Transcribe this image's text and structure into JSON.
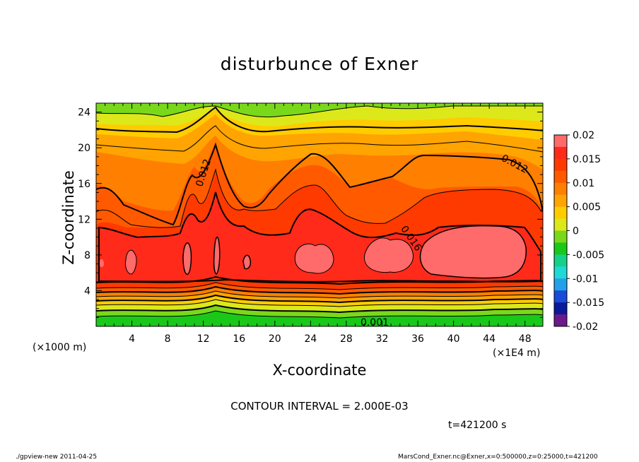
{
  "chart_data": {
    "type": "heatmap",
    "title": "disturbunce of Exner",
    "xlabel": "X-coordinate",
    "ylabel": "Z-coordinate",
    "x_unit_left": "(×1000 m)",
    "x_unit_right": "(×1E4 m)",
    "xticks": [
      4,
      8,
      12,
      16,
      20,
      24,
      28,
      32,
      36,
      40,
      44,
      48
    ],
    "yticks": [
      4,
      8,
      12,
      16,
      20,
      24
    ],
    "xlim": [
      0,
      50
    ],
    "ylim": [
      0,
      25
    ],
    "colorbar_labels": [
      "0.02",
      "0.015",
      "0.01",
      "0.005",
      "0",
      "-0.005",
      "-0.01",
      "-0.015",
      "-0.02"
    ],
    "colorbar_range": [
      -0.02,
      0.02
    ],
    "contour_labels": [
      "0.012",
      "0.012",
      "0.016",
      "0.001"
    ],
    "contour_interval": "CONTOUR INTERVAL = 2.000E-03",
    "time": "t=421200 s",
    "footer_left": "./gpview-new  2011-04-25",
    "footer_right": "MarsCond_Exner.nc@Exner,x=0:500000,z=0:25000,t=421200",
    "colors": {
      "c1": "#6a1a8a",
      "c2": "#0a1a9a",
      "c3": "#1a4ad8",
      "c4": "#23a0e8",
      "c5": "#1fd9d9",
      "c6": "#17d08a",
      "c7": "#19c819",
      "c8": "#7ad81a",
      "c9": "#dde81a",
      "c10": "#ffcc00",
      "c11": "#ffa400",
      "c12": "#ff7f00",
      "c13": "#ff5a00",
      "c14": "#ff3a00",
      "c15": "#ff2a1a",
      "c16": "#ff6a6a"
    }
  }
}
